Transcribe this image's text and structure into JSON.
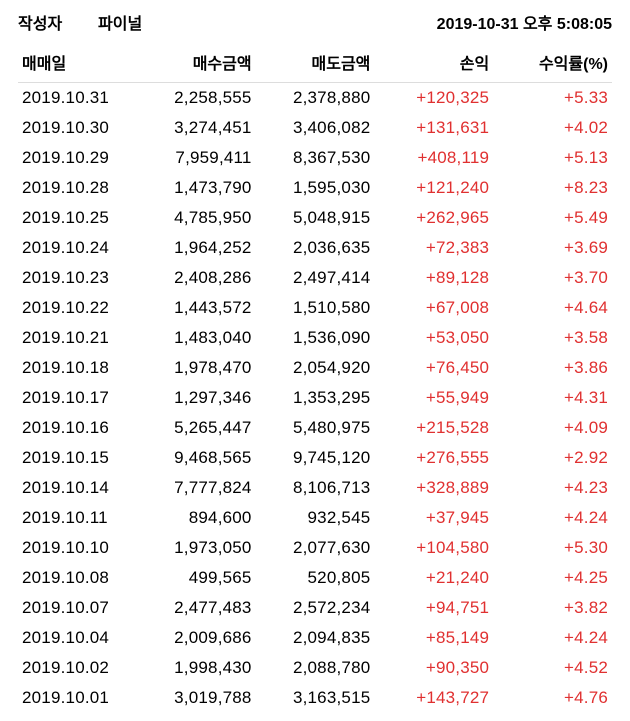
{
  "header": {
    "author_label": "작성자",
    "author_name": "파이널",
    "timestamp": "2019-10-31  오후 5:08:05"
  },
  "table": {
    "columns": {
      "date": "매매일",
      "buy": "매수금액",
      "sell": "매도금액",
      "pl": "손익",
      "rate": "수익률(%)"
    },
    "rows": [
      {
        "date": "2019.10.31",
        "buy": "2,258,555",
        "sell": "2,378,880",
        "pl": "+120,325",
        "rate": "+5.33"
      },
      {
        "date": "2019.10.30",
        "buy": "3,274,451",
        "sell": "3,406,082",
        "pl": "+131,631",
        "rate": "+4.02"
      },
      {
        "date": "2019.10.29",
        "buy": "7,959,411",
        "sell": "8,367,530",
        "pl": "+408,119",
        "rate": "+5.13"
      },
      {
        "date": "2019.10.28",
        "buy": "1,473,790",
        "sell": "1,595,030",
        "pl": "+121,240",
        "rate": "+8.23"
      },
      {
        "date": "2019.10.25",
        "buy": "4,785,950",
        "sell": "5,048,915",
        "pl": "+262,965",
        "rate": "+5.49"
      },
      {
        "date": "2019.10.24",
        "buy": "1,964,252",
        "sell": "2,036,635",
        "pl": "+72,383",
        "rate": "+3.69"
      },
      {
        "date": "2019.10.23",
        "buy": "2,408,286",
        "sell": "2,497,414",
        "pl": "+89,128",
        "rate": "+3.70"
      },
      {
        "date": "2019.10.22",
        "buy": "1,443,572",
        "sell": "1,510,580",
        "pl": "+67,008",
        "rate": "+4.64"
      },
      {
        "date": "2019.10.21",
        "buy": "1,483,040",
        "sell": "1,536,090",
        "pl": "+53,050",
        "rate": "+3.58"
      },
      {
        "date": "2019.10.18",
        "buy": "1,978,470",
        "sell": "2,054,920",
        "pl": "+76,450",
        "rate": "+3.86"
      },
      {
        "date": "2019.10.17",
        "buy": "1,297,346",
        "sell": "1,353,295",
        "pl": "+55,949",
        "rate": "+4.31"
      },
      {
        "date": "2019.10.16",
        "buy": "5,265,447",
        "sell": "5,480,975",
        "pl": "+215,528",
        "rate": "+4.09"
      },
      {
        "date": "2019.10.15",
        "buy": "9,468,565",
        "sell": "9,745,120",
        "pl": "+276,555",
        "rate": "+2.92"
      },
      {
        "date": "2019.10.14",
        "buy": "7,777,824",
        "sell": "8,106,713",
        "pl": "+328,889",
        "rate": "+4.23"
      },
      {
        "date": "2019.10.11",
        "buy": "894,600",
        "sell": "932,545",
        "pl": "+37,945",
        "rate": "+4.24"
      },
      {
        "date": "2019.10.10",
        "buy": "1,973,050",
        "sell": "2,077,630",
        "pl": "+104,580",
        "rate": "+5.30"
      },
      {
        "date": "2019.10.08",
        "buy": "499,565",
        "sell": "520,805",
        "pl": "+21,240",
        "rate": "+4.25"
      },
      {
        "date": "2019.10.07",
        "buy": "2,477,483",
        "sell": "2,572,234",
        "pl": "+94,751",
        "rate": "+3.82"
      },
      {
        "date": "2019.10.04",
        "buy": "2,009,686",
        "sell": "2,094,835",
        "pl": "+85,149",
        "rate": "+4.24"
      },
      {
        "date": "2019.10.02",
        "buy": "1,998,430",
        "sell": "2,088,780",
        "pl": "+90,350",
        "rate": "+4.52"
      },
      {
        "date": "2019.10.01",
        "buy": "3,019,788",
        "sell": "3,163,515",
        "pl": "+143,727",
        "rate": "+4.76"
      }
    ]
  }
}
